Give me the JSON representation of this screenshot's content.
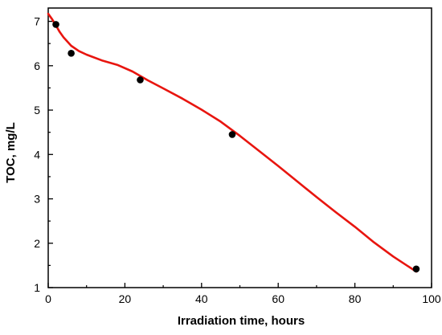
{
  "chart_data": {
    "type": "scatter",
    "title": "",
    "xlabel": "Irradiation time, hours",
    "ylabel": "TOC, mg/L",
    "xlim": [
      0,
      100
    ],
    "ylim": [
      1,
      7.3
    ],
    "x_ticks": [
      0,
      20,
      40,
      60,
      80,
      100
    ],
    "y_ticks": [
      1,
      2,
      3,
      4,
      5,
      6,
      7
    ],
    "x_tick_labels": [
      "0",
      "20",
      "40",
      "60",
      "80",
      "100"
    ],
    "y_tick_labels": [
      "1",
      "2",
      "3",
      "4",
      "5",
      "6",
      "7"
    ],
    "grid": false,
    "legend": "none",
    "series": [
      {
        "kind": "points",
        "color": "#000000",
        "x": [
          2,
          6,
          24,
          48,
          96
        ],
        "y": [
          6.93,
          6.28,
          5.68,
          4.45,
          1.42
        ]
      },
      {
        "kind": "fit-line",
        "color": "#e8150f",
        "x": [
          0,
          1,
          2,
          3,
          4,
          6,
          8,
          10,
          14,
          18,
          22,
          26,
          30,
          35,
          40,
          45,
          50,
          55,
          60,
          65,
          70,
          75,
          80,
          85,
          90,
          96
        ],
        "y": [
          7.17,
          7.05,
          6.91,
          6.76,
          6.64,
          6.45,
          6.33,
          6.25,
          6.12,
          6.02,
          5.87,
          5.67,
          5.49,
          5.26,
          5.01,
          4.74,
          4.42,
          4.08,
          3.74,
          3.39,
          3.04,
          2.7,
          2.37,
          2.02,
          1.7,
          1.36
        ]
      }
    ]
  }
}
